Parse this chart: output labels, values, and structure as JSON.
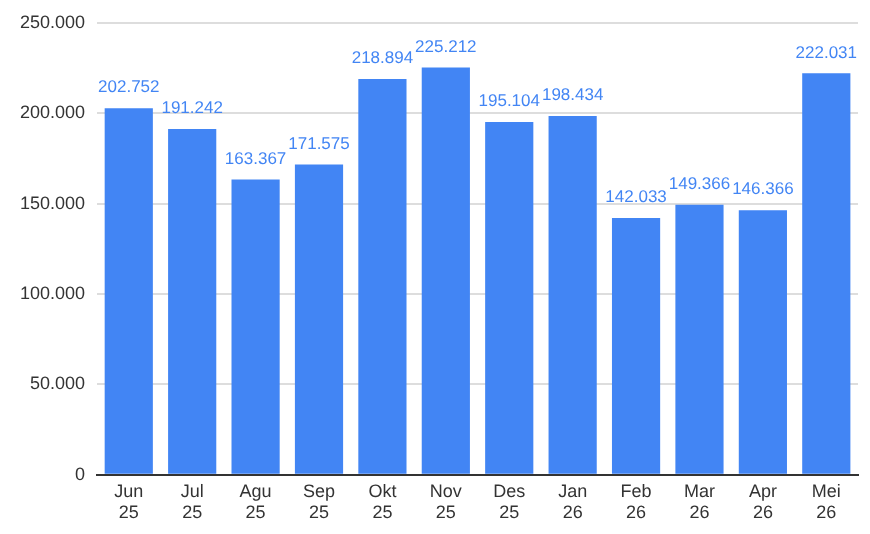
{
  "chart_data": {
    "type": "bar",
    "categories": [
      "Jun 25",
      "Jul 25",
      "Agu 25",
      "Sep 25",
      "Okt 25",
      "Nov 25",
      "Des 25",
      "Jan 26",
      "Feb 26",
      "Mar 26",
      "Apr 26",
      "Mei 26"
    ],
    "values": [
      202752,
      191242,
      163367,
      171575,
      218894,
      225212,
      195104,
      198434,
      142033,
      149366,
      146366,
      222031
    ],
    "value_labels": [
      "202.752",
      "191.242",
      "163.367",
      "171.575",
      "218.894",
      "225.212",
      "195.104",
      "198.434",
      "142.033",
      "149.366",
      "146.366",
      "222.031"
    ],
    "color": "#4285f4",
    "ylim": [
      0,
      250000
    ],
    "yticks": [
      {
        "value": 0,
        "label": "0"
      },
      {
        "value": 50000,
        "label": "50.000"
      },
      {
        "value": 100000,
        "label": "100.000"
      },
      {
        "value": 150000,
        "label": "150.000"
      },
      {
        "value": 200000,
        "label": "200.000"
      },
      {
        "value": 250000,
        "label": "250.000"
      }
    ],
    "grid": "y",
    "legend": false
  }
}
